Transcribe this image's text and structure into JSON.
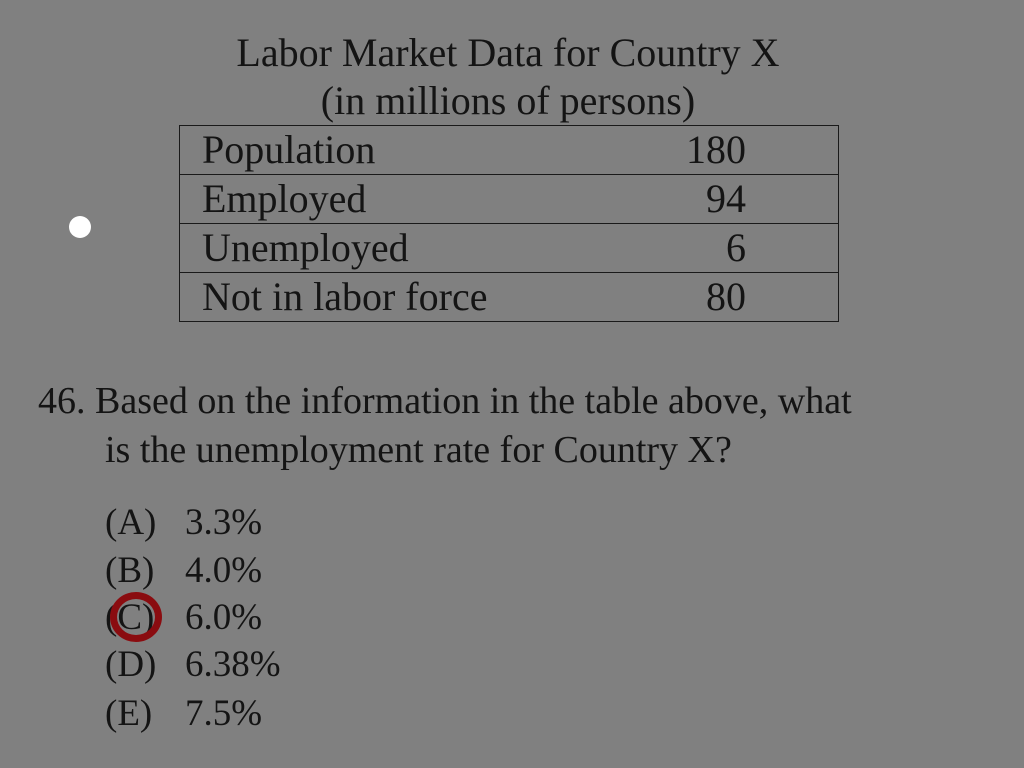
{
  "title": {
    "line1": "Labor Market Data for Country X",
    "line2": "(in millions of persons)"
  },
  "table": {
    "rows": [
      {
        "label": "Population",
        "value": "180"
      },
      {
        "label": "Employed",
        "value": "94"
      },
      {
        "label": "Unemployed",
        "value": "6"
      },
      {
        "label": "Not in labor force",
        "value": "80"
      }
    ]
  },
  "question": {
    "line1": "46. Based on the information in the table above, what",
    "line2": "is the unemployment rate for Country X?"
  },
  "options": [
    {
      "letter": "(A)",
      "value": "3.3%"
    },
    {
      "letter": "(B)",
      "value": "4.0%"
    },
    {
      "letter": "(C)",
      "value": "6.0%"
    },
    {
      "letter": "(D)",
      "value": "6.38%"
    },
    {
      "letter": "(E)",
      "value": "7.5%"
    }
  ],
  "selected_option": "(C)",
  "colors": {
    "background": "#808080",
    "mark": "#8a0c10",
    "bullet": "#ffffff"
  },
  "icons": {
    "bullet": "bullet-icon",
    "mark": "answer-circle-mark"
  }
}
